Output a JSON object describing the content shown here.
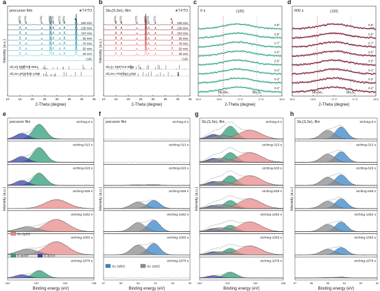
{
  "colors": {
    "a_lines": [
      "#0b3b55",
      "#0f4f6e",
      "#15667f",
      "#1a7b92",
      "#2090a6",
      "#2aa5b8",
      "#47b9c8",
      "#6ecbd6",
      "#9a9a9a"
    ],
    "b_lines": [
      "#5a0f14",
      "#7a141a",
      "#951a20",
      "#b52228",
      "#c9353a",
      "#d8545a",
      "#e47a7e",
      "#eea3a5",
      "#9a9a9a"
    ],
    "c_fill": "#58c9c9",
    "c_fit": "#2e7d32",
    "d_fill": "#b82a4a",
    "d_fit": "#2a2a2a",
    "s_2p32": "#2f9e7a",
    "s_2p12": "#3a44a8",
    "se_2p32": "#e88b8b",
    "se_2p12": "#8e8e8e",
    "se_2d52": "#3a86c8",
    "se_2d32": "#8c8c8c"
  },
  "chart_data": [
    {
      "panel": "a",
      "type": "line",
      "title": "precursor film",
      "corner_label": "★T-FTO",
      "xlabel": "2-Theta (degree)",
      "ylabel": "Intensity (a.u.)",
      "xlim": [
        10,
        45
      ],
      "xticks": [
        "10",
        "15",
        "20",
        "25",
        "30",
        "35",
        "40",
        "45"
      ],
      "series": [
        "150 min",
        "130 min",
        "110 min",
        "90 min",
        "70 min",
        "50 min",
        "30 min",
        "CdS"
      ],
      "peaks": [
        {
          "label": "(020)",
          "x": 15.1
        },
        {
          "label": "(120)",
          "x": 17.5
        },
        {
          "label": "(130)",
          "x": 23.9
        },
        {
          "label": "(230)",
          "x": 27.4
        },
        {
          "label": "(211)",
          "x": 28.5
        },
        {
          "label": "(221)",
          "x": 31.2
        },
        {
          "label": "(301)",
          "x": 33.0
        },
        {
          "label": "★",
          "x": 37.8
        }
      ],
      "references": [
        "Sb₂S₃-PDF#15-0861",
        "Sb₂Se₃-PDF#42-1393"
      ]
    },
    {
      "panel": "b",
      "type": "line",
      "title": "Sb₂(S,Se)₃ film",
      "corner_label": "★T-FTO",
      "xlabel": "2-Theta (degree)",
      "ylabel": "Intensity (a.u.)",
      "xlim": [
        10,
        45
      ],
      "xticks": [
        "10",
        "15",
        "20",
        "25",
        "30",
        "35",
        "40",
        "45"
      ],
      "series": [
        "150 min",
        "130 min",
        "110 min",
        "90 min",
        "70 min",
        "50 min",
        "30 min",
        "CdS"
      ],
      "peaks": [
        {
          "label": "(020)",
          "x": 15.0
        },
        {
          "label": "(120)",
          "x": 17.2
        },
        {
          "label": "(120)",
          "x": 23.5
        },
        {
          "label": "(230)",
          "x": 27.1
        },
        {
          "label": "(211)",
          "x": 28.2
        },
        {
          "label": "(221)",
          "x": 31.0
        },
        {
          "label": "★",
          "x": 37.8
        }
      ],
      "references": [
        "Sb₂S₃-PDF#15-0861",
        "Sb₂Se₃-PDF#42-1393"
      ]
    },
    {
      "panel": "c",
      "type": "scatter",
      "title": "0 s",
      "peak_label": "(120)",
      "xlabel": "2-Theta (degree)",
      "xlim": [
        16.0,
        18.0
      ],
      "xticks": [
        "16.0",
        "16.5",
        "17.0",
        "17.5",
        "18.0"
      ],
      "angles": [
        "0.9°",
        "0.8°",
        "0.7°",
        "0.6°",
        "0.5°",
        "0.4°",
        "0.3°",
        "0.2°"
      ],
      "markers": [
        {
          "label": "Sb₂Se₃",
          "x": 16.6,
          "color": "#e0463d"
        },
        {
          "label": "Sb₂S₃",
          "x": 17.4,
          "color": "#7ec8e3"
        }
      ],
      "peak_centers": [
        16.95,
        16.95,
        16.95,
        16.95,
        16.95,
        16.95,
        16.95,
        16.95
      ]
    },
    {
      "panel": "d",
      "type": "scatter",
      "title": "600 s",
      "peak_label": "(120)",
      "xlabel": "2-Theta (degree)",
      "xlim": [
        16.0,
        18.0
      ],
      "xticks": [
        "16.0",
        "16.5",
        "17.0",
        "17.5",
        "18.0"
      ],
      "angles": [
        "0.9°",
        "0.8°",
        "0.7°",
        "0.6°",
        "0.5°",
        "0.4°",
        "0.3°",
        "0.2°"
      ],
      "markers": [
        {
          "label": "Sb₂Se₃",
          "x": 16.6,
          "color": "#e0463d"
        },
        {
          "label": "Sb₂S₃",
          "x": 17.4,
          "color": "#7ec8e3"
        }
      ],
      "peak_centers": [
        17.0,
        17.0,
        17.0,
        17.0,
        17.0,
        17.0,
        17.0,
        17.0
      ]
    },
    {
      "panel": "e",
      "type": "area",
      "title": "precursor film",
      "xlabel": "Binding energy (eV)",
      "ylabel": "Intensity (a.u.)",
      "xlim": [
        164,
        158
      ],
      "xticks": [
        "164",
        "162",
        "160",
        "158"
      ],
      "rows": [
        "etching-0 s",
        "etching-313 s",
        "etching-626 s",
        "etching-939 s",
        "etching-1252 s",
        "etching-1565 s",
        "etching-1878 s"
      ],
      "legend": [
        "S 2p3/2",
        "S 2p1/2",
        "Se 2p3/2"
      ]
    },
    {
      "panel": "f",
      "type": "area",
      "title": "precursor film",
      "xlabel": "Binding energy (eV)",
      "ylabel": "Intensity (a.u.)",
      "xlim": [
        57,
        52
      ],
      "xticks": [
        "57",
        "56",
        "55",
        "54",
        "53",
        "52"
      ],
      "rows": [
        "etching-0 s",
        "etching-313 s",
        "etching-626 s",
        "etching-939 s",
        "etching-1252 s",
        "etching-1565 s",
        "etching-1878 s"
      ],
      "legend": [
        "Se 2d5/2",
        "Se 2d3/2"
      ]
    },
    {
      "panel": "g",
      "type": "area",
      "title": "Sb₂(S,Se)₃ film",
      "xlabel": "Binding energy (eV)",
      "ylabel": "Intensity (a.u.)",
      "xlim": [
        164,
        158
      ],
      "xticks": [
        "164",
        "162",
        "160",
        "158"
      ],
      "rows": [
        "etching-0 s",
        "etching-313 s",
        "etching-626 s",
        "etching-939 s",
        "etching-1252 s",
        "etching-1565 s",
        "etching-1878 s"
      ]
    },
    {
      "panel": "h",
      "type": "area",
      "title": "Sb₂(S,Se)₃ film",
      "xlabel": "Binding energy (eV)",
      "ylabel": "Intensity (a.u.)",
      "xlim": [
        57,
        52
      ],
      "xticks": [
        "57",
        "56",
        "55",
        "54",
        "53",
        "52"
      ],
      "rows": [
        "etching-0 s",
        "etching-313 s",
        "etching-626 s",
        "etching-939 s",
        "etching-1252 s",
        "etching-1565 s",
        "etching-1878 s"
      ]
    }
  ]
}
